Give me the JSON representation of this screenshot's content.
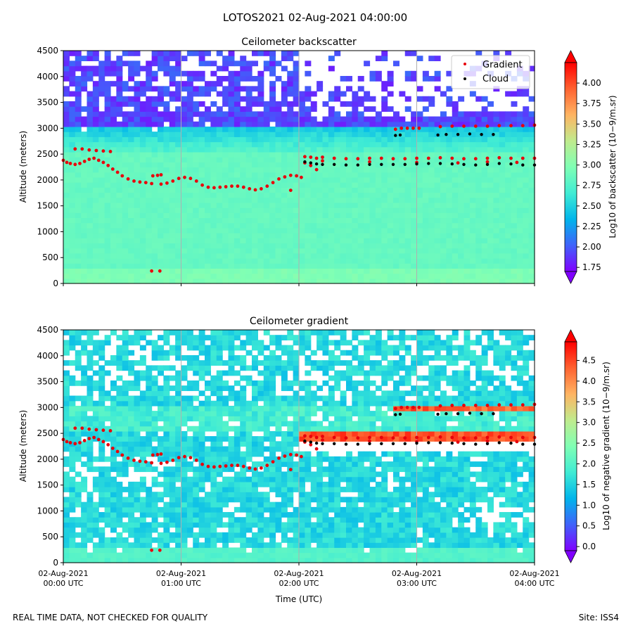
{
  "figure": {
    "suptitle": "LOTOS2021 02-Aug-2021 04:00:00",
    "footer_left": "REAL TIME DATA, NOT CHECKED FOR QUALITY",
    "footer_right": "Site: ISS4",
    "xlabel": "Time (UTC)"
  },
  "colors": {
    "rainbow": [
      "#8000ff",
      "#4062fa",
      "#00b5eb",
      "#40ecd4",
      "#80ffb4",
      "#c0eb8d",
      "#ffb462",
      "#ff6230",
      "#ff0000"
    ],
    "gradient_marker": "#e8000b",
    "cloud_marker": "#000000",
    "grid": "#b0b0b0"
  },
  "chart_data": [
    {
      "type": "heatmap",
      "title": "Ceilometer backscatter",
      "ylabel": "Altitude (meters)",
      "colorbar_label": "Log10 of backscatter (10−9/m.sr)",
      "colorbar_range": [
        1.7,
        4.25
      ],
      "colorbar_ticks": [
        "1.75",
        "2.00",
        "2.25",
        "2.50",
        "2.75",
        "3.00",
        "3.25",
        "3.50",
        "3.75",
        "4.00"
      ],
      "colorbar_tick_values": [
        1.75,
        2.0,
        2.25,
        2.5,
        2.75,
        3.0,
        3.25,
        3.5,
        3.75,
        4.0
      ],
      "xlim_hours_utc": [
        0,
        4
      ],
      "ylim": [
        0,
        4500
      ],
      "y_ticks": [
        0,
        500,
        1000,
        1500,
        2000,
        2500,
        3000,
        3500,
        4000,
        4500
      ],
      "x_ticks": [
        "02-Aug-2021\n00:00 UTC",
        "02-Aug-2021\n01:00 UTC",
        "02-Aug-2021\n02:00 UTC",
        "02-Aug-2021\n03:00 UTC",
        "02-Aug-2021\n04:00 UTC"
      ],
      "x_tick_labels_shown": false,
      "legend": {
        "placement": "top-right",
        "entries": [
          "Gradient",
          "Cloud"
        ]
      },
      "grid": "vertical lines at hours",
      "field_description": "backscatter ~2.8-2.9 below 2500 m, ~2.5-3.0 band 2500-3000 m, 1.75-2.0 above with white missing regions; cloud layer ~2400 m and ~2900-3000 m after 02:00 UTC"
    },
    {
      "type": "heatmap",
      "title": "Ceilometer gradient",
      "ylabel": "Altitude (meters)",
      "colorbar_label": "Log10 of negative gradient (10−9/m.sr)",
      "colorbar_range": [
        -0.1,
        4.95
      ],
      "colorbar_ticks": [
        "0.0",
        "0.5",
        "1.0",
        "1.5",
        "2.0",
        "2.5",
        "3.0",
        "3.5",
        "4.0",
        "4.5"
      ],
      "colorbar_tick_values": [
        0.0,
        0.5,
        1.0,
        1.5,
        2.0,
        2.5,
        3.0,
        3.5,
        4.0,
        4.5
      ],
      "xlim_hours_utc": [
        0,
        4
      ],
      "ylim": [
        0,
        4500
      ],
      "y_ticks": [
        0,
        500,
        1000,
        1500,
        2000,
        2500,
        3000,
        3500,
        4000,
        4500
      ],
      "x_ticks": [
        "02-Aug-2021\n00:00 UTC",
        "02-Aug-2021\n01:00 UTC",
        "02-Aug-2021\n02:00 UTC",
        "02-Aug-2021\n03:00 UTC",
        "02-Aug-2021\n04:00 UTC"
      ],
      "x_tick_labels_shown": true,
      "grid": "vertical lines at hours",
      "field_description": "negative gradient mostly 1.5-2.0 with many white (missing) patches; strong 4.5 layers near 2400-2500 m and ~3000 m after 02:00 UTC"
    }
  ],
  "series": {
    "gradient_points": [
      [
        0.0,
        2380
      ],
      [
        0.03,
        2340
      ],
      [
        0.06,
        2320
      ],
      [
        0.1,
        2300
      ],
      [
        0.14,
        2320
      ],
      [
        0.18,
        2360
      ],
      [
        0.22,
        2400
      ],
      [
        0.26,
        2420
      ],
      [
        0.3,
        2380
      ],
      [
        0.34,
        2340
      ],
      [
        0.38,
        2280
      ],
      [
        0.42,
        2210
      ],
      [
        0.46,
        2150
      ],
      [
        0.5,
        2080
      ],
      [
        0.55,
        2020
      ],
      [
        0.6,
        1980
      ],
      [
        0.65,
        1960
      ],
      [
        0.7,
        1950
      ],
      [
        0.75,
        1930
      ],
      [
        0.1,
        2600
      ],
      [
        0.16,
        2600
      ],
      [
        0.22,
        2580
      ],
      [
        0.28,
        2570
      ],
      [
        0.34,
        2560
      ],
      [
        0.4,
        2550
      ],
      [
        0.76,
        2080
      ],
      [
        0.8,
        2090
      ],
      [
        0.83,
        2100
      ],
      [
        0.75,
        240
      ],
      [
        0.82,
        240
      ],
      [
        0.83,
        1920
      ],
      [
        0.88,
        1940
      ],
      [
        0.93,
        1980
      ],
      [
        0.98,
        2030
      ],
      [
        1.03,
        2050
      ],
      [
        1.08,
        2030
      ],
      [
        1.13,
        1980
      ],
      [
        1.18,
        1900
      ],
      [
        1.23,
        1860
      ],
      [
        1.28,
        1850
      ],
      [
        1.33,
        1860
      ],
      [
        1.38,
        1870
      ],
      [
        1.43,
        1880
      ],
      [
        1.48,
        1880
      ],
      [
        1.53,
        1860
      ],
      [
        1.58,
        1830
      ],
      [
        1.63,
        1810
      ],
      [
        1.68,
        1830
      ],
      [
        1.73,
        1880
      ],
      [
        1.78,
        1950
      ],
      [
        1.83,
        2020
      ],
      [
        1.88,
        2060
      ],
      [
        1.93,
        2090
      ],
      [
        1.98,
        2080
      ],
      [
        2.02,
        2050
      ],
      [
        1.93,
        1800
      ],
      [
        2.05,
        2450
      ],
      [
        2.1,
        2440
      ],
      [
        2.15,
        2420
      ],
      [
        2.2,
        2440
      ],
      [
        2.3,
        2420
      ],
      [
        2.4,
        2410
      ],
      [
        2.5,
        2410
      ],
      [
        2.6,
        2420
      ],
      [
        2.7,
        2420
      ],
      [
        2.8,
        2410
      ],
      [
        2.9,
        2410
      ],
      [
        3.0,
        2420
      ],
      [
        3.1,
        2420
      ],
      [
        3.2,
        2430
      ],
      [
        3.3,
        2420
      ],
      [
        3.4,
        2410
      ],
      [
        3.5,
        2410
      ],
      [
        3.6,
        2420
      ],
      [
        3.7,
        2430
      ],
      [
        3.8,
        2420
      ],
      [
        3.9,
        2420
      ],
      [
        4.0,
        2420
      ],
      [
        2.05,
        2330
      ],
      [
        2.1,
        2280
      ],
      [
        2.15,
        2200
      ],
      [
        2.82,
        2980
      ],
      [
        2.87,
        3000
      ],
      [
        2.92,
        3000
      ],
      [
        2.97,
        3000
      ],
      [
        3.02,
        3000
      ],
      [
        3.2,
        3030
      ],
      [
        3.3,
        3040
      ],
      [
        3.4,
        3040
      ],
      [
        3.5,
        3040
      ],
      [
        3.6,
        3040
      ],
      [
        3.7,
        3050
      ],
      [
        3.8,
        3050
      ],
      [
        3.9,
        3050
      ],
      [
        4.0,
        3060
      ],
      [
        2.2,
        2370
      ],
      [
        2.6,
        2350
      ],
      [
        3.0,
        2340
      ],
      [
        3.35,
        2330
      ],
      [
        3.6,
        2350
      ],
      [
        3.85,
        2340
      ]
    ],
    "cloud_points": [
      [
        2.05,
        2350
      ],
      [
        2.1,
        2330
      ],
      [
        2.15,
        2310
      ],
      [
        2.2,
        2300
      ],
      [
        2.3,
        2300
      ],
      [
        2.4,
        2290
      ],
      [
        2.5,
        2290
      ],
      [
        2.6,
        2300
      ],
      [
        2.7,
        2300
      ],
      [
        2.8,
        2300
      ],
      [
        2.9,
        2300
      ],
      [
        3.0,
        2310
      ],
      [
        3.1,
        2320
      ],
      [
        3.2,
        2320
      ],
      [
        3.3,
        2310
      ],
      [
        3.4,
        2300
      ],
      [
        3.5,
        2290
      ],
      [
        3.6,
        2300
      ],
      [
        3.7,
        2320
      ],
      [
        3.8,
        2310
      ],
      [
        3.9,
        2290
      ],
      [
        4.0,
        2290
      ],
      [
        2.82,
        2860
      ],
      [
        2.86,
        2870
      ],
      [
        3.18,
        2870
      ],
      [
        3.25,
        2880
      ],
      [
        3.35,
        2880
      ],
      [
        3.45,
        2890
      ],
      [
        3.55,
        2880
      ],
      [
        3.65,
        2880
      ]
    ]
  }
}
